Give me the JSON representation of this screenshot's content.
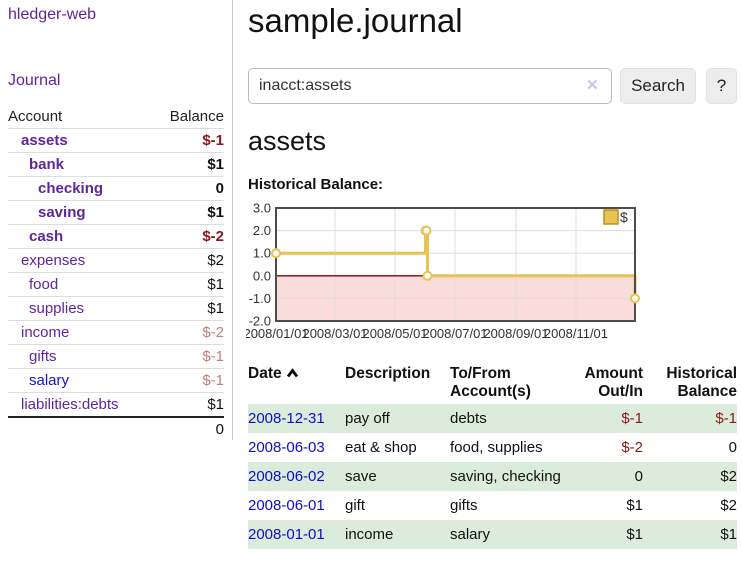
{
  "app": {
    "brand": "hledger-web",
    "nav_journal": "Journal"
  },
  "sidebar": {
    "header": {
      "account": "Account",
      "balance": "Balance"
    },
    "accounts": [
      {
        "name": "assets",
        "balance": "$-1"
      },
      {
        "name": "bank",
        "balance": "$1"
      },
      {
        "name": "checking",
        "balance": "0"
      },
      {
        "name": "saving",
        "balance": "$1"
      },
      {
        "name": "cash",
        "balance": "$-2"
      },
      {
        "name": "expenses",
        "balance": "$2"
      },
      {
        "name": "food",
        "balance": "$1"
      },
      {
        "name": "supplies",
        "balance": "$1"
      },
      {
        "name": "income",
        "balance": "$-2"
      },
      {
        "name": "gifts",
        "balance": "$-1"
      },
      {
        "name": "salary",
        "balance": "$-1"
      },
      {
        "name": "liabilities:debts",
        "balance": "$1"
      }
    ],
    "total": "0"
  },
  "header": {
    "title": "sample.journal"
  },
  "search": {
    "value": "inacct:assets",
    "clear_label": "✕",
    "button": "Search",
    "help": "?"
  },
  "account_page": {
    "heading": "assets",
    "chart_label": "Historical Balance:"
  },
  "chart_data": {
    "type": "line",
    "line_style": "step-after",
    "title": "Historical Balance",
    "series": [
      {
        "name": "$",
        "x": [
          "2008-01-01",
          "2008-06-01",
          "2008-06-02",
          "2008-06-03",
          "2008-12-31"
        ],
        "values": [
          1,
          2,
          2,
          0,
          -1
        ]
      }
    ],
    "xlim": [
      "2008-01-01",
      "2008-12-31"
    ],
    "ylim": [
      -2,
      3
    ],
    "ytick_labels": [
      "3.0",
      "2.0",
      "1.0",
      "0.0",
      "-1.0",
      "-2.0"
    ],
    "xtick_labels": [
      "2008/01/01",
      "2008/03/01",
      "2008/05/01",
      "2008/07/01",
      "2008/09/01",
      "2008/11/01"
    ],
    "legend": "$",
    "legend_position": "top-right",
    "grid": true,
    "colors": {
      "line": "#e9c352",
      "marker_fill": "#ffffff",
      "legend_border": "#b8901f",
      "negative_fill": "#fbdcdc",
      "zero_line": "#8b0000",
      "grid": "#ddd",
      "border": "#4d4d4d"
    }
  },
  "table": {
    "headers": {
      "date": "Date",
      "description": "Description",
      "tofrom_l1": "To/From",
      "tofrom_l2": "Account(s)",
      "amount_l1": "Amount",
      "amount_l2": "Out/In",
      "balance_l1": "Historical",
      "balance_l2": "Balance"
    },
    "rows": [
      {
        "date": "2008-12-31",
        "description": "pay off",
        "accounts": "debts",
        "amount": "$-1",
        "balance": "$-1"
      },
      {
        "date": "2008-06-03",
        "description": "eat & shop",
        "accounts": "food, supplies",
        "amount": "$-2",
        "balance": "0"
      },
      {
        "date": "2008-06-02",
        "description": "save",
        "accounts": "saving, checking",
        "amount": "0",
        "balance": "$2"
      },
      {
        "date": "2008-06-01",
        "description": "gift",
        "accounts": "gifts",
        "amount": "$1",
        "balance": "$2"
      },
      {
        "date": "2008-01-01",
        "description": "income",
        "accounts": "salary",
        "amount": "$1",
        "balance": "$1"
      }
    ]
  }
}
